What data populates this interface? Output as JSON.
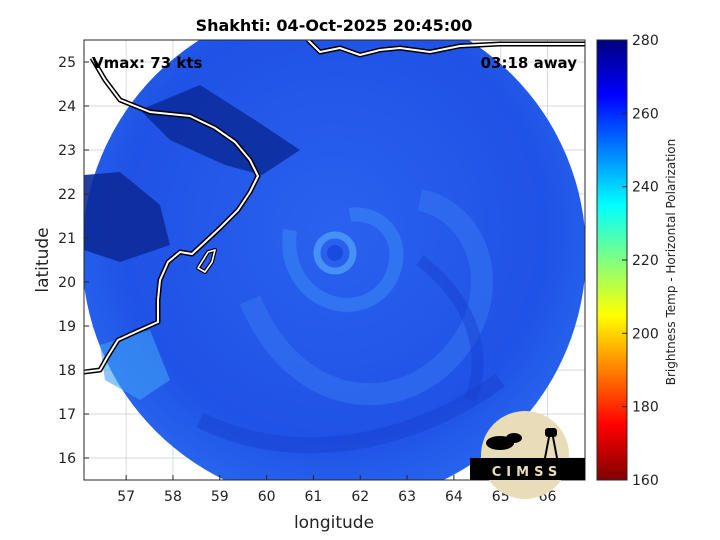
{
  "title": "Shakhti: 04-Oct-2025 20:45:00",
  "vmax_label": "Vmax: 73 kts",
  "away_label": "03:18 away",
  "xlabel": "longitude",
  "ylabel": "latitude",
  "colorbar_label": "Brightness Temp - Horizontal Polarization",
  "logo_text": "CIMSS",
  "x_ticks": [
    "57",
    "58",
    "59",
    "60",
    "61",
    "62",
    "63",
    "64",
    "65",
    "66"
  ],
  "y_ticks": [
    "16",
    "17",
    "18",
    "19",
    "20",
    "21",
    "22",
    "23",
    "24",
    "25"
  ],
  "colorbar_ticks": [
    "160",
    "180",
    "200",
    "220",
    "240",
    "260",
    "280"
  ],
  "colors": {
    "colorbar_stops": [
      "#800000",
      "#ff0000",
      "#ff8000",
      "#ffff00",
      "#80ff80",
      "#00ffff",
      "#0080ff",
      "#0000ff",
      "#000080"
    ],
    "swath_base": "#1e4fe8",
    "swath_dark": "#0c2a9a",
    "swath_light": "#3a7cf5"
  },
  "chart_data": {
    "type": "heatmap",
    "title": "Shakhti: 04-Oct-2025 20:45:00",
    "xlabel": "longitude",
    "ylabel": "latitude",
    "xlim": [
      56.1,
      66.8
    ],
    "ylim": [
      15.5,
      25.5
    ],
    "colorbar_range": [
      160,
      280
    ],
    "storm_center": {
      "lon": 61.6,
      "lat": 20.5
    },
    "grid": true
  }
}
